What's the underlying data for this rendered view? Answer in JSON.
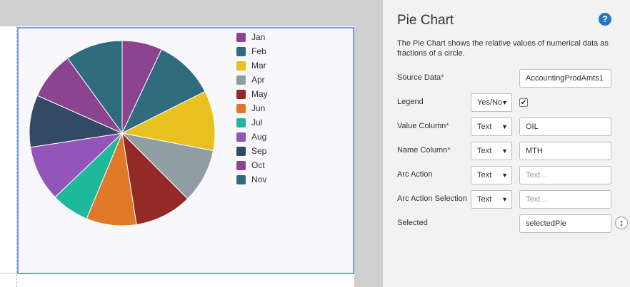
{
  "panel": {
    "title": "Pie Chart",
    "help_icon": "help-icon",
    "help_glyph": "?",
    "description": "The Pie Chart shows the relative values of numerical data as fractions of a circle.",
    "fields": {
      "source_data": {
        "label": "Source Data",
        "required": "*",
        "value": "AccountingProdAmts1"
      },
      "legend": {
        "label": "Legend",
        "type": "Yes/No",
        "checked": "✔"
      },
      "value_column": {
        "label": "Value Column",
        "required": "*",
        "type": "Text",
        "value": "OIL"
      },
      "name_column": {
        "label": "Name Column",
        "required": "*",
        "type": "Text",
        "value": "MTH"
      },
      "arc_action": {
        "label": "Arc Action",
        "type": "Text",
        "placeholder": "Text..."
      },
      "arc_action_selection": {
        "label": "Arc Action Selection",
        "type": "Text",
        "placeholder": "Text..."
      },
      "selected": {
        "label": "Selected",
        "value": "selectedPie",
        "resize_glyph": "↕"
      }
    },
    "select_arrow": "▼"
  },
  "chart_data": {
    "type": "pie",
    "categories": [
      "Jan",
      "Feb",
      "Mar",
      "Apr",
      "May",
      "Jun",
      "Jul",
      "Aug",
      "Sep",
      "Oct",
      "Nov"
    ],
    "values": [
      7.2,
      10.9,
      10.8,
      9.8,
      10.3,
      9.0,
      6.8,
      10.0,
      9.4,
      8.6,
      10.3
    ],
    "colors": [
      "#8c4390",
      "#2e6b7e",
      "#e8c01f",
      "#909ea3",
      "#922b26",
      "#df7b28",
      "#1eb99b",
      "#9355b9",
      "#324a63",
      "#8c4390",
      "#2e6b7e"
    ],
    "legend_position": "top-right"
  }
}
